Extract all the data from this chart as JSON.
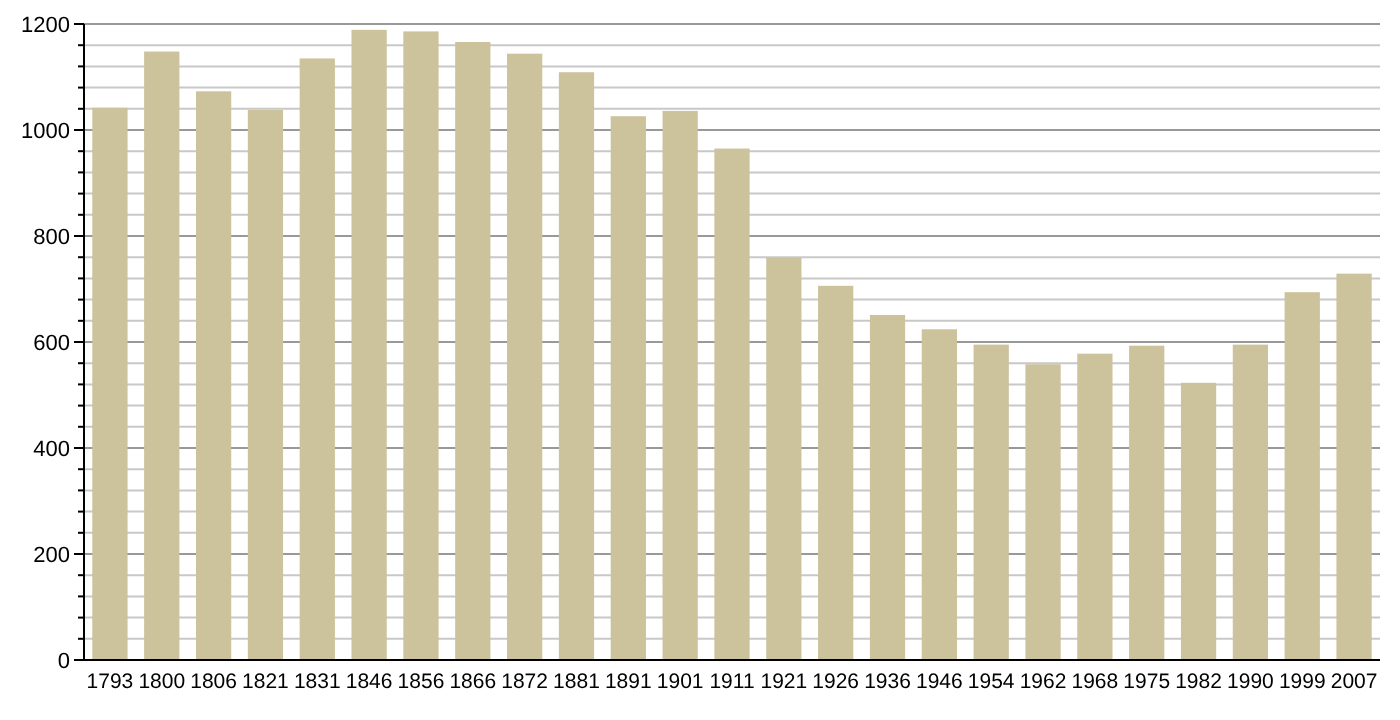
{
  "chart_data": {
    "type": "bar",
    "categories": [
      "1793",
      "1800",
      "1806",
      "1821",
      "1831",
      "1846",
      "1856",
      "1866",
      "1872",
      "1881",
      "1891",
      "1901",
      "1911",
      "1921",
      "1926",
      "1936",
      "1946",
      "1954",
      "1962",
      "1968",
      "1975",
      "1982",
      "1990",
      "1999",
      "2007"
    ],
    "values": [
      1042,
      1148,
      1073,
      1038,
      1135,
      1189,
      1186,
      1166,
      1144,
      1109,
      1026,
      1036,
      965,
      759,
      706,
      651,
      624,
      595,
      558,
      578,
      593,
      523,
      595,
      694,
      729
    ],
    "color": "#ccc29b",
    "ylim": [
      0,
      1200
    ],
    "yticks": [
      0,
      {
        "value": 40,
        "label": null
      },
      {
        "value": 80,
        "label": null
      },
      {
        "value": 120,
        "label": null
      },
      {
        "value": 160,
        "label": null
      },
      200,
      {
        "value": 240,
        "label": null
      },
      {
        "value": 280,
        "label": null
      },
      {
        "value": 320,
        "label": null
      },
      {
        "value": 360,
        "label": null
      },
      400,
      {
        "value": 440,
        "label": null
      },
      {
        "value": 480,
        "label": null
      },
      {
        "value": 520,
        "label": null
      },
      {
        "value": 560,
        "label": null
      },
      600,
      {
        "value": 640,
        "label": null
      },
      {
        "value": 680,
        "label": null
      },
      {
        "value": 720,
        "label": null
      },
      {
        "value": 760,
        "label": null
      },
      800,
      {
        "value": 840,
        "label": null
      },
      {
        "value": 880,
        "label": null
      },
      {
        "value": 920,
        "label": null
      },
      {
        "value": 960,
        "label": null
      },
      1000,
      {
        "value": 1040,
        "label": null
      },
      {
        "value": 1080,
        "label": null
      },
      {
        "value": 1120,
        "label": null
      },
      {
        "value": 1160,
        "label": null
      },
      1200
    ],
    "grid": true
  }
}
